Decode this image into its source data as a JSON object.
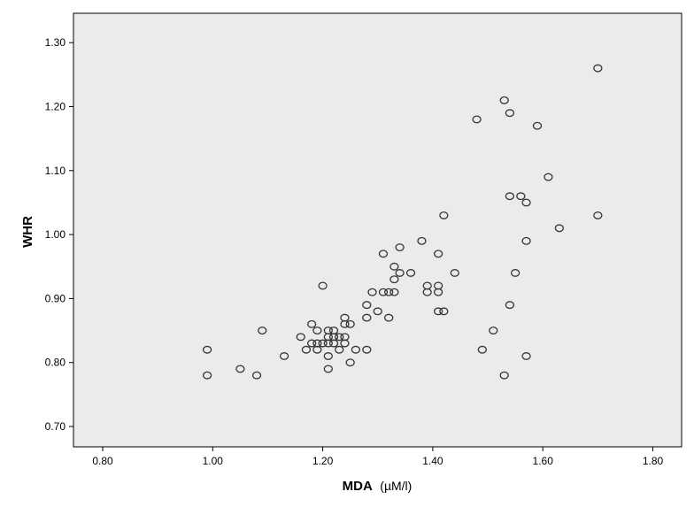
{
  "chart_data": {
    "type": "scatter",
    "title": "",
    "xlabel": "MDA",
    "xlabel_unit": "(µM/l)",
    "ylabel": "WHR",
    "xlim": [
      0.75,
      1.85
    ],
    "ylim": [
      0.67,
      1.34
    ],
    "xticks": [
      "0.80",
      "1.00",
      "1.20",
      "1.40",
      "1.60",
      "1.80"
    ],
    "yticks": [
      "0.70",
      "0.80",
      "0.90",
      "1.00",
      "1.10",
      "1.20",
      "1.30"
    ],
    "grid": false,
    "marker": "open-circle",
    "points": [
      [
        0.99,
        0.82
      ],
      [
        0.99,
        0.78
      ],
      [
        1.05,
        0.79
      ],
      [
        1.08,
        0.78
      ],
      [
        1.09,
        0.85
      ],
      [
        1.13,
        0.81
      ],
      [
        1.16,
        0.84
      ],
      [
        1.17,
        0.82
      ],
      [
        1.18,
        0.86
      ],
      [
        1.18,
        0.83
      ],
      [
        1.19,
        0.85
      ],
      [
        1.19,
        0.83
      ],
      [
        1.19,
        0.82
      ],
      [
        1.2,
        0.92
      ],
      [
        1.2,
        0.83
      ],
      [
        1.21,
        0.85
      ],
      [
        1.21,
        0.84
      ],
      [
        1.21,
        0.83
      ],
      [
        1.21,
        0.81
      ],
      [
        1.21,
        0.79
      ],
      [
        1.22,
        0.85
      ],
      [
        1.22,
        0.84
      ],
      [
        1.22,
        0.83
      ],
      [
        1.23,
        0.84
      ],
      [
        1.23,
        0.82
      ],
      [
        1.24,
        0.87
      ],
      [
        1.24,
        0.86
      ],
      [
        1.24,
        0.84
      ],
      [
        1.24,
        0.83
      ],
      [
        1.25,
        0.86
      ],
      [
        1.25,
        0.8
      ],
      [
        1.26,
        0.82
      ],
      [
        1.28,
        0.89
      ],
      [
        1.28,
        0.87
      ],
      [
        1.28,
        0.82
      ],
      [
        1.29,
        0.91
      ],
      [
        1.3,
        0.88
      ],
      [
        1.31,
        0.97
      ],
      [
        1.31,
        0.91
      ],
      [
        1.32,
        0.91
      ],
      [
        1.32,
        0.87
      ],
      [
        1.33,
        0.95
      ],
      [
        1.33,
        0.93
      ],
      [
        1.33,
        0.91
      ],
      [
        1.34,
        0.98
      ],
      [
        1.34,
        0.94
      ],
      [
        1.36,
        0.94
      ],
      [
        1.38,
        0.99
      ],
      [
        1.39,
        0.92
      ],
      [
        1.39,
        0.91
      ],
      [
        1.41,
        0.97
      ],
      [
        1.41,
        0.92
      ],
      [
        1.41,
        0.91
      ],
      [
        1.41,
        0.88
      ],
      [
        1.42,
        1.03
      ],
      [
        1.42,
        0.88
      ],
      [
        1.44,
        0.94
      ],
      [
        1.48,
        1.18
      ],
      [
        1.49,
        0.82
      ],
      [
        1.51,
        0.85
      ],
      [
        1.53,
        1.21
      ],
      [
        1.53,
        0.78
      ],
      [
        1.54,
        1.19
      ],
      [
        1.54,
        1.06
      ],
      [
        1.54,
        0.89
      ],
      [
        1.55,
        0.94
      ],
      [
        1.56,
        1.06
      ],
      [
        1.57,
        1.05
      ],
      [
        1.57,
        0.99
      ],
      [
        1.57,
        0.81
      ],
      [
        1.59,
        1.17
      ],
      [
        1.61,
        1.09
      ],
      [
        1.63,
        1.01
      ],
      [
        1.7,
        1.26
      ],
      [
        1.7,
        1.03
      ]
    ]
  }
}
